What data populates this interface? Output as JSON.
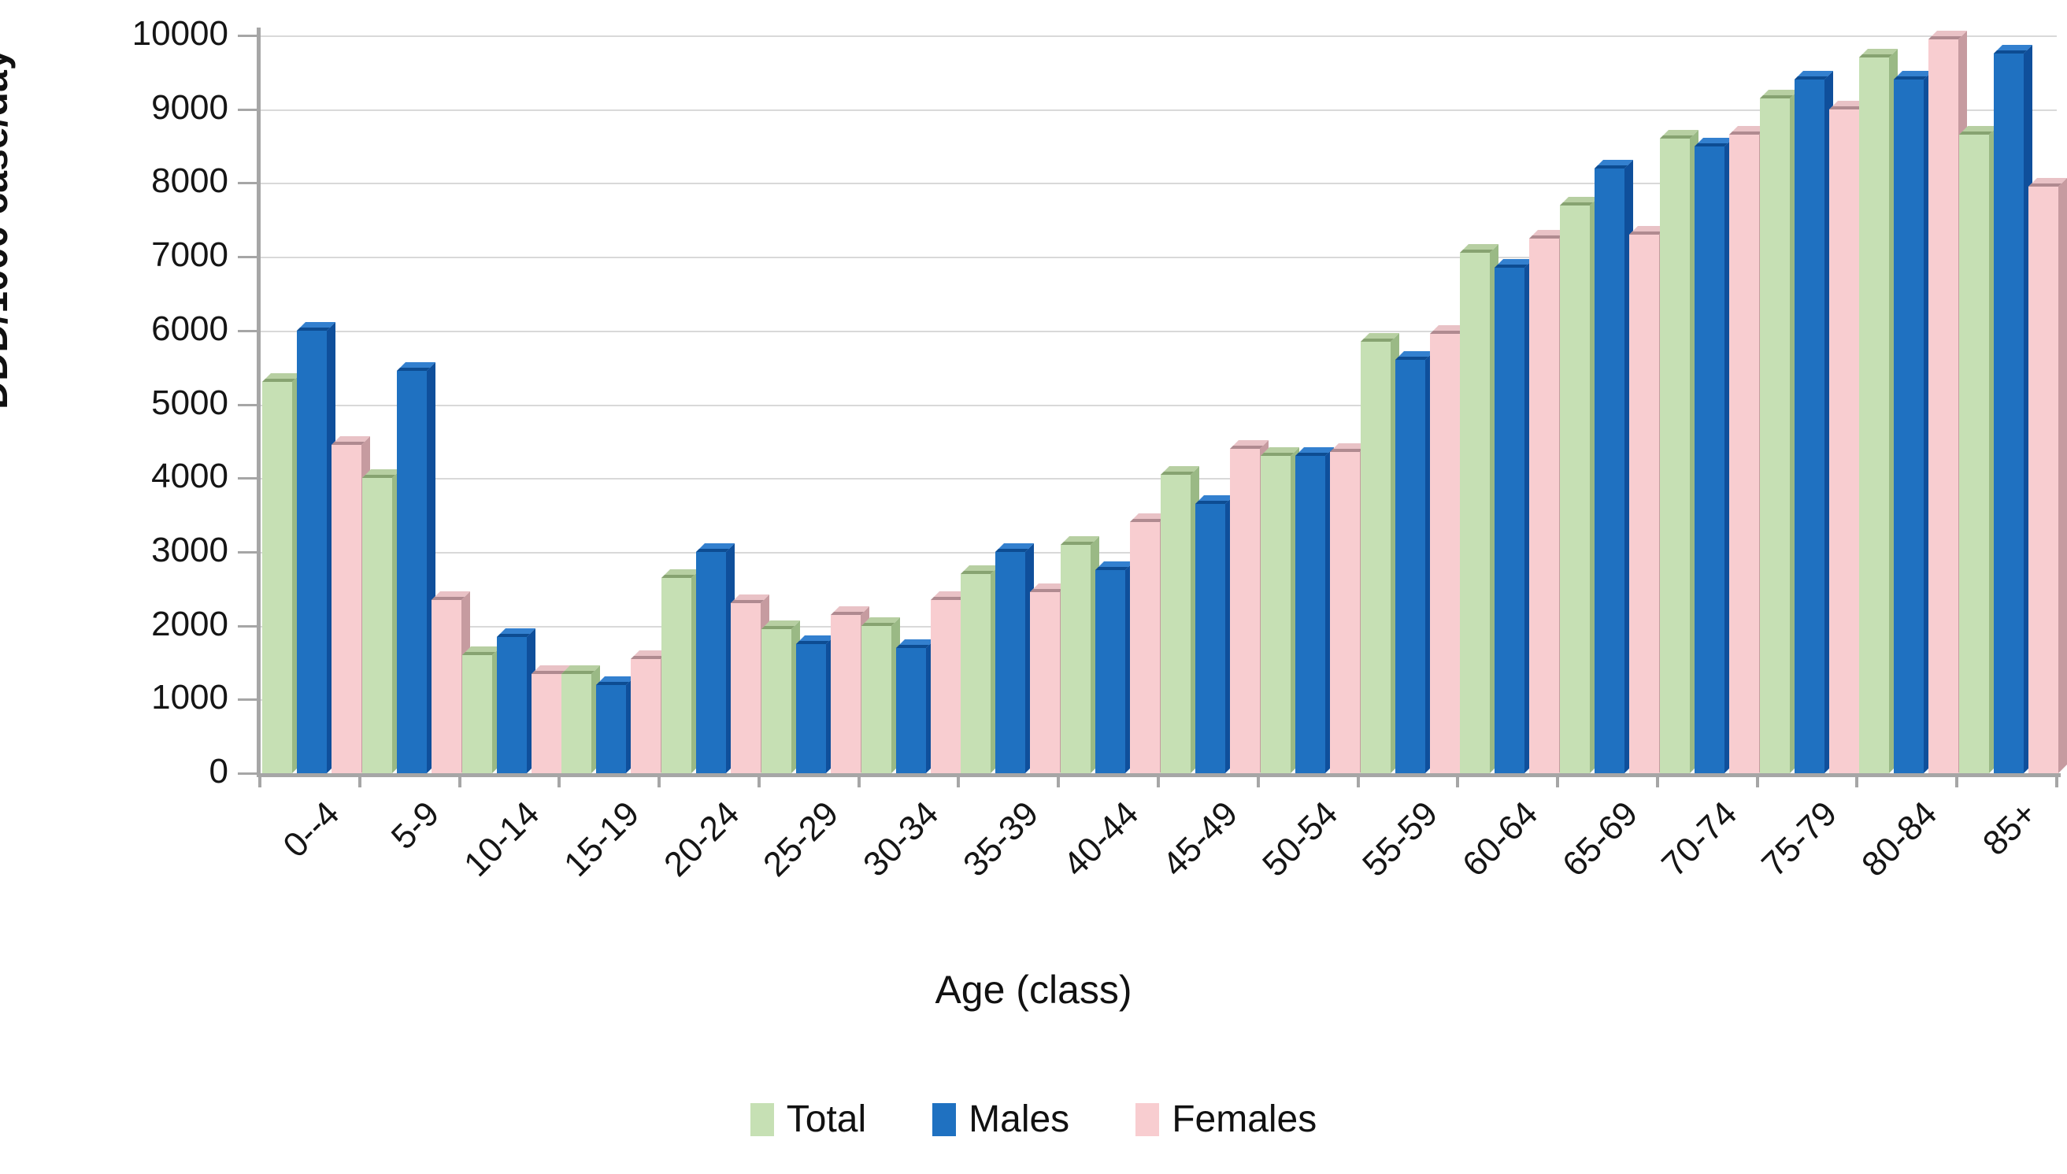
{
  "chart_data": {
    "type": "bar",
    "title": "",
    "xlabel": "Age (class)",
    "ylabel": "DDD/1000 case/day",
    "ylim": [
      0,
      10000
    ],
    "y_tick_step": 1000,
    "y_tick_labels": [
      "0",
      "1000",
      "2000",
      "3000",
      "4000",
      "5000",
      "6000",
      "7000",
      "8000",
      "9000",
      "10000"
    ],
    "grid": "horizontal",
    "legend_position": "bottom",
    "bar_style": "3d-clustered",
    "categories": [
      "0--4",
      "5-9",
      "10-14",
      "15-19",
      "20-24",
      "25-29",
      "30-34",
      "35-39",
      "40-44",
      "45-49",
      "50-54",
      "55-59",
      "60-64",
      "65-69",
      "70-74",
      "75-79",
      "80-84",
      "85+"
    ],
    "series": [
      {
        "name": "Total",
        "color": "#c6e0b4",
        "side_color": "#9ab985",
        "top_color": "#b7cfa2",
        "edge_color": "#87a371",
        "values": [
          5300,
          4000,
          1600,
          1350,
          2650,
          1950,
          2000,
          2700,
          3100,
          4050,
          4300,
          5850,
          7050,
          7700,
          8600,
          9150,
          9700,
          8650
        ]
      },
      {
        "name": "Males",
        "color": "#1f71c1",
        "side_color": "#0f4f9b",
        "top_color": "#3380cf",
        "edge_color": "#0d4c92",
        "values": [
          6000,
          5450,
          1850,
          1200,
          3000,
          1750,
          1700,
          3000,
          2750,
          3650,
          4300,
          5600,
          6850,
          8200,
          8500,
          9400,
          9400,
          9750
        ]
      },
      {
        "name": "Females",
        "color": "#f8cdd0",
        "side_color": "#c69ba0",
        "top_color": "#e9c2c6",
        "edge_color": "#b08a90",
        "values": [
          4450,
          2350,
          1350,
          1550,
          2300,
          2150,
          2350,
          2450,
          3400,
          4400,
          4350,
          5950,
          7250,
          7300,
          8650,
          9000,
          9950,
          7950
        ]
      }
    ],
    "axis_color": "#a6a6a6",
    "gridline_color": "#d9d9d9"
  }
}
